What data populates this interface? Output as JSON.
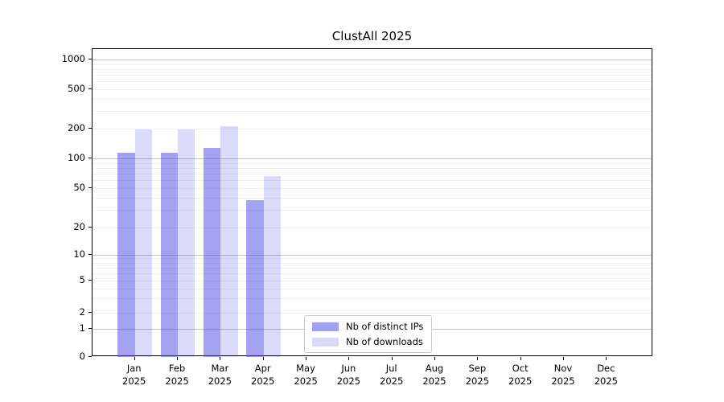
{
  "title": "ClustAll 2025",
  "legend": {
    "items": [
      {
        "label": "Nb of distinct IPs",
        "color": "#a1a1f1",
        "fill": "rgba(85,85,230,0.55)"
      },
      {
        "label": "Nb of downloads",
        "color": "#d9d9f9",
        "fill": "rgba(85,85,230,0.22)"
      }
    ]
  },
  "chart_data": {
    "type": "bar",
    "title": "ClustAll 2025",
    "categories": [
      "Jan 2025",
      "Feb 2025",
      "Mar 2025",
      "Apr 2025",
      "May 2025",
      "Jun 2025",
      "Jul 2025",
      "Aug 2025",
      "Sep 2025",
      "Oct 2025",
      "Nov 2025",
      "Dec 2025"
    ],
    "series": [
      {
        "name": "Nb of distinct IPs",
        "color": "#a1a1f1",
        "fill": "rgba(85,85,230,0.55)",
        "values": [
          115,
          113,
          127,
          38,
          null,
          null,
          null,
          null,
          null,
          null,
          null,
          null
        ]
      },
      {
        "name": "Nb of downloads",
        "color": "#d9d9f9",
        "fill": "rgba(85,85,230,0.22)",
        "values": [
          198,
          198,
          212,
          66,
          null,
          null,
          null,
          null,
          null,
          null,
          null,
          null
        ]
      }
    ],
    "xlabel": "",
    "ylabel": "",
    "yscale": "symlog",
    "ylim": [
      0,
      1280
    ],
    "yticks": [
      0,
      1,
      2,
      5,
      10,
      20,
      50,
      100,
      200,
      500,
      1000
    ],
    "minor_gridline_values": [
      2,
      3,
      4,
      5,
      6,
      7,
      8,
      9,
      20,
      30,
      40,
      50,
      60,
      70,
      80,
      90,
      200,
      300,
      400,
      500,
      600,
      700,
      800,
      900
    ],
    "major_gridline_values": [
      1,
      10,
      100,
      1000
    ],
    "grid": "both",
    "legend_position": "lower center"
  }
}
